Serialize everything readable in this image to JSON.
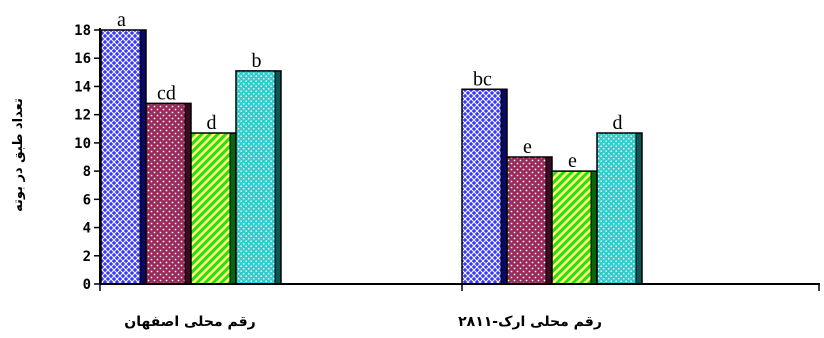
{
  "chart_data": {
    "type": "bar",
    "title": "",
    "xlabel": "",
    "ylabel": "تعداد طبق در بوته",
    "ylim": [
      0,
      18
    ],
    "yticks": [
      "0",
      "2",
      "4",
      "6",
      "8",
      "10",
      "12",
      "14",
      "16",
      "18"
    ],
    "categories": [
      "رقم محلی اصفهان",
      "رقم محلی ارک-۲۸۱۱"
    ],
    "series": [
      {
        "values": [
          18,
          13.8
        ],
        "letters": [
          "a",
          "bc"
        ],
        "color": "#3a3aff",
        "pattern": "blue-crosshatch"
      },
      {
        "values": [
          12.8,
          9
        ],
        "letters": [
          "cd",
          "e"
        ],
        "color": "#9a2a5a",
        "pattern": "maroon-dots"
      },
      {
        "values": [
          10.7,
          8
        ],
        "letters": [
          "d",
          "e"
        ],
        "color": "#33ee33",
        "pattern": "green-diagonal"
      },
      {
        "values": [
          15.1,
          10.7
        ],
        "letters": [
          "b",
          "d"
        ],
        "color": "#33cccc",
        "pattern": "teal-dots"
      }
    ],
    "grid": false,
    "legend": "none"
  }
}
